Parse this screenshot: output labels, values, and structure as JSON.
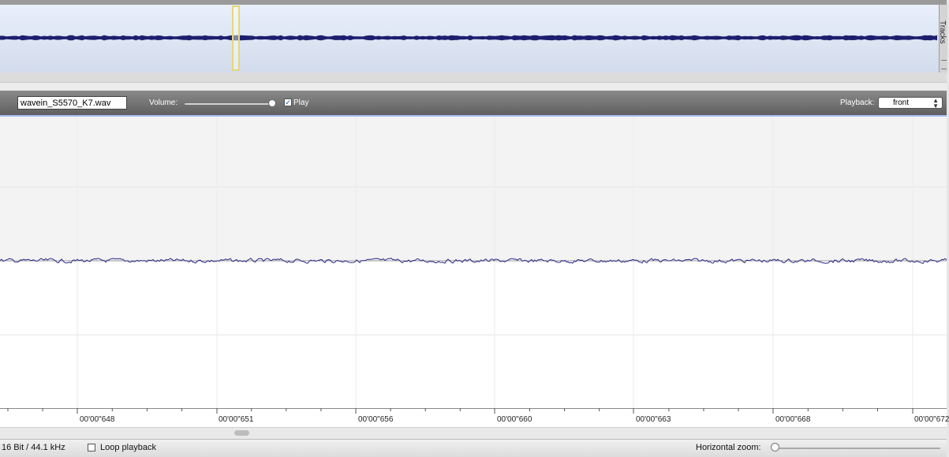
{
  "overview": {
    "tracks_label": "Tracks"
  },
  "toolbar": {
    "filename": "wavein_S5570_K7.wav",
    "volume_label": "Volume:",
    "volume_level": 0.95,
    "play_label": "Play",
    "play_checked": true,
    "playback_label": "Playback:",
    "playback_value": "front"
  },
  "ruler": {
    "labels": [
      "00'00\"648",
      "00'00\"651",
      "00'00\"656",
      "00'00\"660",
      "00'00\"663",
      "00'00\"668",
      "00'00\"672"
    ]
  },
  "status": {
    "format": "16 Bit / 44.1 kHz",
    "loop_label": "Loop playback",
    "loop_checked": false,
    "zoom_label": "Horizontal zoom:",
    "zoom_level": 0.0
  },
  "colors": {
    "waveform": "#2a2a86",
    "overview_wave": "#1c1f6e",
    "selection": "#e4d87a",
    "toolbar": "#6e6e6e"
  }
}
